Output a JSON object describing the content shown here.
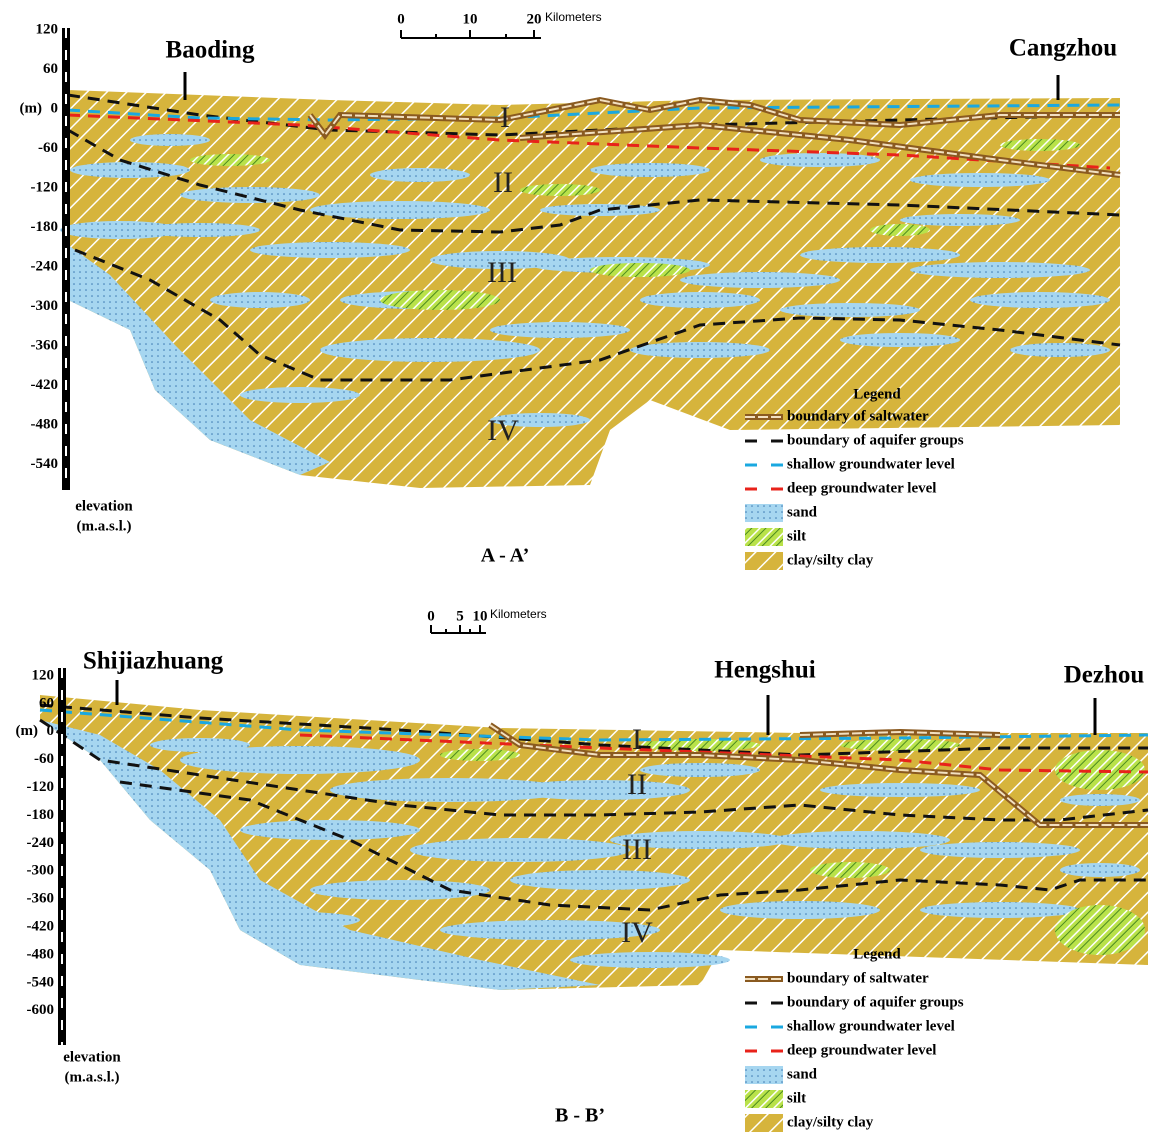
{
  "sections": [
    {
      "title": "A - A’",
      "scale_bar": {
        "labels": [
          "0",
          "10",
          "20"
        ],
        "unit": "Kilometers"
      },
      "elevation_axis": {
        "unit": "(m)",
        "ticks": [
          "120",
          "60",
          "0",
          "-60",
          "-120",
          "-180",
          "-240",
          "-300",
          "-360",
          "-420",
          "-480",
          "-540"
        ],
        "caption": [
          "elevation",
          "(m.a.s.l.)"
        ]
      },
      "places": [
        "Baoding",
        "Cangzhou"
      ],
      "aquifer_groups": [
        "I",
        "II",
        "III",
        "IV"
      ],
      "legend": {
        "title": "Legend",
        "items": [
          "boundary of saltwater",
          "boundary of aquifer groups",
          "shallow groundwater level",
          "deep groundwater level",
          "sand",
          "silt",
          "clay/silty clay"
        ]
      }
    },
    {
      "title": "B - B’",
      "scale_bar": {
        "labels": [
          "0",
          "5",
          "10"
        ],
        "unit": "Kilometers"
      },
      "elevation_axis": {
        "unit": "(m)",
        "ticks": [
          "120",
          "60",
          "0",
          "-60",
          "-120",
          "-180",
          "-240",
          "-300",
          "-360",
          "-420",
          "-480",
          "-540",
          "-600"
        ],
        "caption": [
          "elevation",
          "(m.a.s.l.)"
        ]
      },
      "places": [
        "Shijiazhuang",
        "Hengshui",
        "Dezhou"
      ],
      "aquifer_groups": [
        "I",
        "II",
        "III",
        "IV"
      ],
      "legend": {
        "title": "Legend",
        "items": [
          "boundary of saltwater",
          "boundary of aquifer groups",
          "shallow groundwater level",
          "deep groundwater level",
          "sand",
          "silt",
          "clay/silty clay"
        ]
      }
    }
  ]
}
